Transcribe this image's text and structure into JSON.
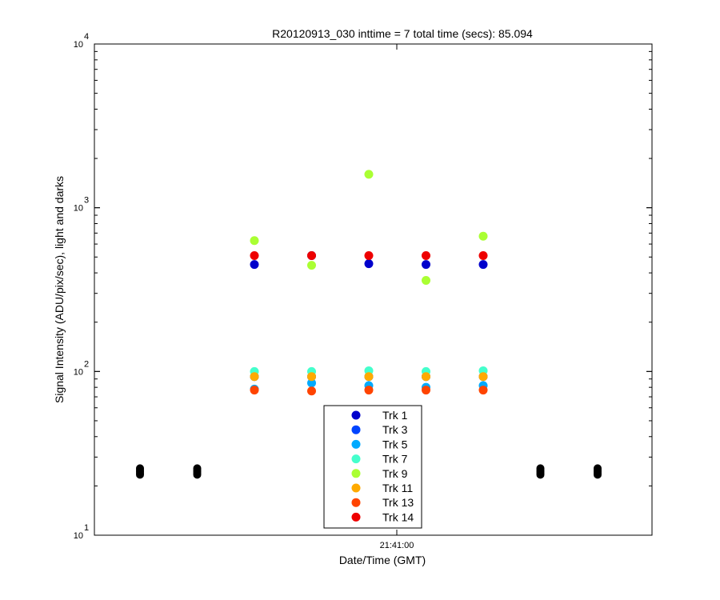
{
  "chart_data": {
    "type": "scatter",
    "title": "R20120913_030 inttime = 7 total time (secs): 85.094",
    "xlabel": "Date/Time (GMT)",
    "ylabel": "Signal Intensity (ADU/pix/sec), light and darks",
    "y_scale": "log",
    "ylim": [
      10,
      10000
    ],
    "y_ticks": [
      {
        "value": 10,
        "base": "10",
        "exp": "1"
      },
      {
        "value": 100,
        "base": "10",
        "exp": "2"
      },
      {
        "value": 1000,
        "base": "10",
        "exp": "3"
      },
      {
        "value": 10000,
        "base": "10",
        "exp": "4"
      }
    ],
    "x_ticks": [
      "21:41:00"
    ],
    "x": [
      1,
      2,
      3,
      4,
      5
    ],
    "legend_position": "bottom-center",
    "series": [
      {
        "name": "Trk 1",
        "color": "#0000cc",
        "values": [
          450,
          510,
          455,
          450,
          450
        ]
      },
      {
        "name": "Trk 3",
        "color": "#0044ff",
        "values": [
          93,
          93,
          93,
          93,
          93
        ]
      },
      {
        "name": "Trk 5",
        "color": "#00aaff",
        "values": [
          78,
          85,
          82,
          80,
          82
        ]
      },
      {
        "name": "Trk 7",
        "color": "#44ffcc",
        "values": [
          100,
          100,
          101,
          100,
          101
        ]
      },
      {
        "name": "Trk 9",
        "color": "#aaff33",
        "values": [
          630,
          445,
          1600,
          360,
          670
        ]
      },
      {
        "name": "Trk 11",
        "color": "#ffaa00",
        "values": [
          93,
          93,
          93,
          93,
          93
        ]
      },
      {
        "name": "Trk 13",
        "color": "#ff4400",
        "values": [
          77,
          76,
          77,
          77,
          77
        ]
      },
      {
        "name": "Trk 14",
        "color": "#ee0000",
        "values": [
          510,
          510,
          510,
          510,
          510
        ]
      }
    ],
    "darks": {
      "color": "#000000",
      "x": [
        -1,
        0,
        6,
        7
      ],
      "values": [
        24.5,
        24.5,
        24.5,
        24.5
      ]
    }
  }
}
